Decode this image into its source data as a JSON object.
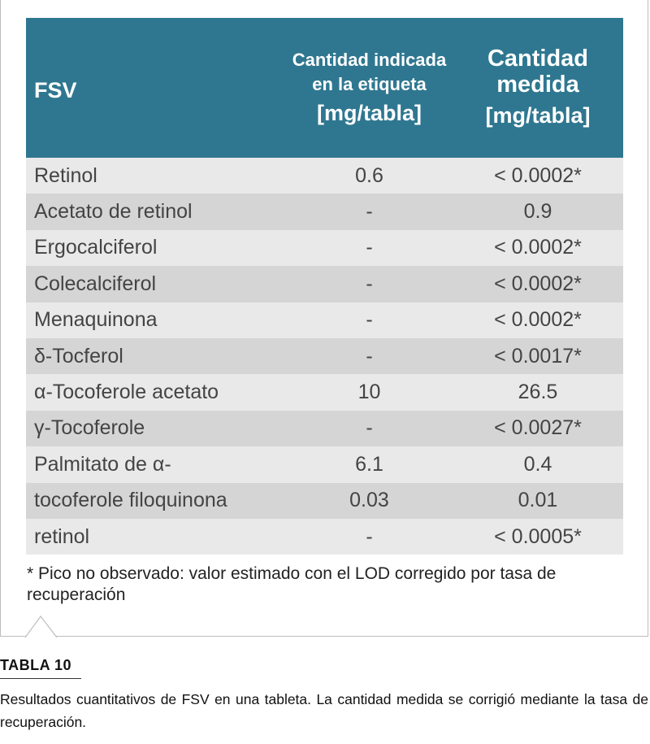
{
  "table": {
    "header": {
      "name": "FSV",
      "label_amount_title": "Cantidad indicada en la etiqueta",
      "label_amount_unit": "[mg/tabla]",
      "measured_amount_title": "Cantidad medida",
      "measured_amount_unit": "[mg/tabla]"
    },
    "rows": [
      {
        "name": "Retinol",
        "label": "0.6",
        "measured": "< 0.0002*"
      },
      {
        "name": "Acetato de retinol",
        "label": "-",
        "measured": "0.9"
      },
      {
        "name": "Ergocalciferol",
        "label": "-",
        "measured": "< 0.0002*"
      },
      {
        "name": "Colecalciferol",
        "label": "-",
        "measured": "< 0.0002*"
      },
      {
        "name": "Menaquinona",
        "label": "-",
        "measured": "< 0.0002*"
      },
      {
        "name": "δ-Tocferol",
        "label": "-",
        "measured": "< 0.0017*"
      },
      {
        "name": "α-Tocoferole acetato",
        "label": "10",
        "measured": "26.5"
      },
      {
        "name": "γ-Tocoferole",
        "label": "-",
        "measured": "< 0.0027*"
      },
      {
        "name": "Palmitato de α-",
        "label": "6.1",
        "measured": "0.4"
      },
      {
        "name": "tocoferole filoquinona",
        "label": "0.03",
        "measured": "0.01"
      },
      {
        "name": "retinol",
        "label": "-",
        "measured": "< 0.0005*"
      }
    ],
    "header_color": "#2f7790"
  },
  "footnote": "* Pico no observado: valor estimado con el LOD corregido por tasa de recuperación",
  "caption": {
    "title": "TABLA 10",
    "text": "Resultados cuantitativos de FSV en una tableta. La cantidad medida se corrigió mediante la tasa de recuperación."
  }
}
